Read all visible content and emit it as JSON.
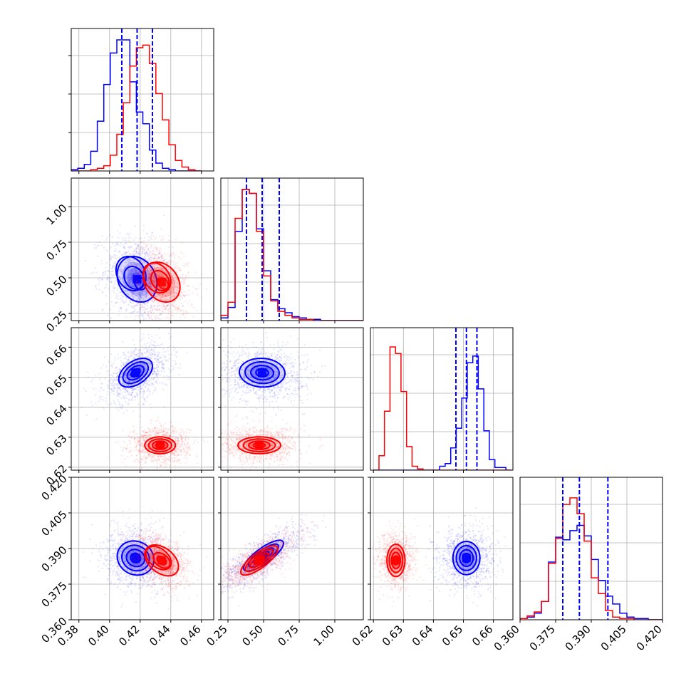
{
  "chart_data": {
    "type": "corner",
    "grid": true,
    "series": [
      {
        "color": "#0000ff",
        "means": [
          0.418,
          0.49,
          0.651,
          0.386
        ],
        "sds": [
          0.008,
          0.11,
          0.0035,
          0.0048
        ],
        "quantiles": [
          [
            0.408,
            0.418,
            0.428
          ],
          [
            0.38,
            0.49,
            0.61
          ],
          [
            0.6475,
            0.651,
            0.6545
          ],
          [
            0.378,
            0.385,
            0.397
          ]
        ],
        "hist": [
          {
            "edges": [
              0.375,
              0.46
            ],
            "values": [
              0.01,
              0.02,
              0.05,
              0.15,
              0.38,
              0.66,
              0.9,
              1.0,
              1.0,
              0.68,
              0.45,
              0.36,
              0.16,
              0.06,
              0.02,
              0.01,
              0,
              0,
              0,
              0
            ]
          },
          {
            "edges": [
              0.2,
              1.2
            ],
            "values": [
              0.02,
              0.1,
              0.68,
              1.0,
              0.97,
              0.7,
              0.38,
              0.16,
              0.09,
              0.06,
              0.03,
              0.02,
              0.01,
              0.01,
              0,
              0,
              0,
              0,
              0,
              0
            ]
          },
          {
            "edges": [
              0.62,
              0.666
            ],
            "values": [
              0,
              0,
              0,
              0,
              0,
              0,
              0,
              0,
              0,
              0,
              0,
              0,
              0.03,
              0.05,
              0.17,
              0.32,
              0.55,
              0.82,
              0.87,
              0.62,
              0.3,
              0.08,
              0.02,
              0.02,
              0
            ]
          },
          {
            "edges": [
              0.36,
              0.42
            ],
            "values": [
              0.01,
              0.02,
              0.05,
              0.14,
              0.44,
              0.63,
              0.61,
              0.68,
              0.72,
              0.64,
              0.46,
              0.3,
              0.18,
              0.12,
              0.05,
              0.02,
              0.01,
              0.01,
              0,
              0
            ]
          }
        ],
        "pairs": [
          {
            "x": 0,
            "y": 1,
            "center": [
              0.418,
              0.49
            ],
            "rx": 0.013,
            "ry": 0.16,
            "rho": -0.2,
            "offsets": [
              [
                0,
                0
              ],
              [
                -0.004,
                0.04
              ],
              [
                -0.002,
                0.01
              ],
              [
                0.002,
                -0.03
              ]
            ]
          },
          {
            "x": 0,
            "y": 2,
            "center": [
              0.417,
              0.6515
            ],
            "rx": 0.011,
            "ry": 0.0048,
            "rho": 0.45,
            "offsets": [
              [
                0,
                0
              ],
              [
                0,
                0
              ],
              [
                0,
                0
              ],
              [
                0,
                0
              ]
            ]
          },
          {
            "x": 1,
            "y": 2,
            "center": [
              0.49,
              0.6515
            ],
            "rx": 0.16,
            "ry": 0.0048,
            "rho": -0.05,
            "offsets": [
              [
                0,
                0
              ],
              [
                0,
                0
              ],
              [
                0,
                0
              ],
              [
                0,
                0
              ]
            ]
          },
          {
            "x": 0,
            "y": 3,
            "center": [
              0.417,
              0.386
            ],
            "rx": 0.012,
            "ry": 0.0072,
            "rho": -0.1,
            "offsets": [
              [
                0,
                0
              ],
              [
                0,
                0
              ],
              [
                0,
                0
              ],
              [
                0,
                0
              ]
            ]
          },
          {
            "x": 1,
            "y": 3,
            "center": [
              0.5,
              0.387
            ],
            "rx": 0.14,
            "ry": 0.0065,
            "rho": 0.8,
            "offsets": [
              [
                0,
                0
              ],
              [
                0,
                0
              ],
              [
                0,
                0
              ],
              [
                0,
                0
              ]
            ]
          },
          {
            "x": 2,
            "y": 3,
            "center": [
              0.651,
              0.386
            ],
            "rx": 0.0045,
            "ry": 0.007,
            "rho": 0,
            "offsets": [
              [
                0,
                0
              ],
              [
                0,
                0
              ],
              [
                0,
                0
              ],
              [
                0,
                0
              ]
            ]
          }
        ]
      },
      {
        "color": "#ff0000",
        "means": [
          0.433,
          0.47,
          0.6275,
          0.385
        ],
        "sds": [
          0.007,
          0.1,
          0.0022,
          0.0042
        ],
        "hist": [
          {
            "edges": [
              0.375,
              0.46
            ],
            "values": [
              0,
              0,
              0,
              0.01,
              0.02,
              0.04,
              0.12,
              0.28,
              0.52,
              0.8,
              0.94,
              0.96,
              0.82,
              0.59,
              0.39,
              0.2,
              0.08,
              0.03,
              0.01,
              0
            ]
          },
          {
            "edges": [
              0.2,
              1.2
            ],
            "values": [
              0.04,
              0.14,
              0.78,
              1.0,
              0.97,
              0.68,
              0.34,
              0.15,
              0.07,
              0.04,
              0.02,
              0.01,
              0.01,
              0,
              0,
              0,
              0,
              0,
              0,
              0
            ]
          },
          {
            "edges": [
              0.62,
              0.666
            ],
            "values": [
              0,
              0.11,
              0.45,
              0.94,
              0.89,
              0.6,
              0.18,
              0.03,
              0.01,
              0,
              0,
              0,
              0,
              0,
              0,
              0,
              0,
              0,
              0,
              0,
              0,
              0,
              0,
              0,
              0
            ]
          },
          {
            "edges": [
              0.36,
              0.42
            ],
            "values": [
              0.01,
              0.03,
              0.06,
              0.14,
              0.43,
              0.62,
              0.88,
              0.93,
              0.81,
              0.6,
              0.32,
              0.2,
              0.07,
              0.02,
              0.01,
              0.01,
              0,
              0,
              0,
              0
            ]
          }
        ],
        "pairs": [
          {
            "x": 0,
            "y": 1,
            "center": [
              0.434,
              0.47
            ],
            "rx": 0.012,
            "ry": 0.14,
            "rho": -0.25,
            "offsets": [
              [
                0,
                0
              ],
              [
                -0.003,
                0.03
              ],
              [
                -0.001,
                0.01
              ],
              [
                0.001,
                -0.01
              ]
            ]
          },
          {
            "x": 0,
            "y": 2,
            "center": [
              0.433,
              0.6273
            ],
            "rx": 0.01,
            "ry": 0.0028,
            "rho": 0,
            "offsets": [
              [
                0,
                0
              ],
              [
                0,
                0
              ],
              [
                0,
                0
              ],
              [
                0,
                0
              ]
            ]
          },
          {
            "x": 1,
            "y": 2,
            "center": [
              0.47,
              0.6273
            ],
            "rx": 0.15,
            "ry": 0.0028,
            "rho": 0,
            "offsets": [
              [
                0,
                0
              ],
              [
                0,
                0
              ],
              [
                0,
                0
              ],
              [
                0,
                0
              ]
            ]
          },
          {
            "x": 0,
            "y": 3,
            "center": [
              0.434,
              0.385
            ],
            "rx": 0.011,
            "ry": 0.0065,
            "rho": -0.4,
            "offsets": [
              [
                0,
                0
              ],
              [
                -0.002,
                0.001
              ],
              [
                0,
                0
              ],
              [
                0,
                0
              ]
            ]
          },
          {
            "x": 1,
            "y": 3,
            "center": [
              0.47,
              0.385
            ],
            "rx": 0.13,
            "ry": 0.0062,
            "rho": 0.78,
            "offsets": [
              [
                0,
                0
              ],
              [
                0,
                0
              ],
              [
                0,
                0
              ],
              [
                0,
                0
              ]
            ]
          },
          {
            "x": 2,
            "y": 3,
            "center": [
              0.6275,
              0.385
            ],
            "rx": 0.003,
            "ry": 0.0068,
            "rho": 0,
            "offsets": [
              [
                0,
                0
              ],
              [
                0,
                0
              ],
              [
                0,
                0
              ],
              [
                0,
                0
              ]
            ]
          }
        ]
      }
    ],
    "params": [
      {
        "range": [
          0.375,
          0.468
        ],
        "ticks": [
          0.38,
          0.4,
          0.42,
          0.44,
          0.46
        ],
        "ticklabels": [
          "0.38",
          "0.40",
          "0.42",
          "0.44",
          "0.46"
        ]
      },
      {
        "range": [
          0.2,
          1.2
        ],
        "ticks": [
          0.25,
          0.5,
          0.75,
          1.0
        ],
        "ticklabels": [
          "0.25",
          "0.50",
          "0.75",
          "1.00"
        ]
      },
      {
        "range": [
          0.619,
          0.6665
        ],
        "ticks": [
          0.62,
          0.63,
          0.64,
          0.65,
          0.66
        ],
        "ticklabels": [
          "0.62",
          "0.63",
          "0.64",
          "0.65",
          "0.66"
        ]
      },
      {
        "range": [
          0.36,
          0.42
        ],
        "ticks": [
          0.36,
          0.375,
          0.39,
          0.405,
          0.42
        ],
        "ticklabels": [
          "0.360",
          "0.375",
          "0.390",
          "0.405",
          "0.420"
        ]
      }
    ]
  }
}
